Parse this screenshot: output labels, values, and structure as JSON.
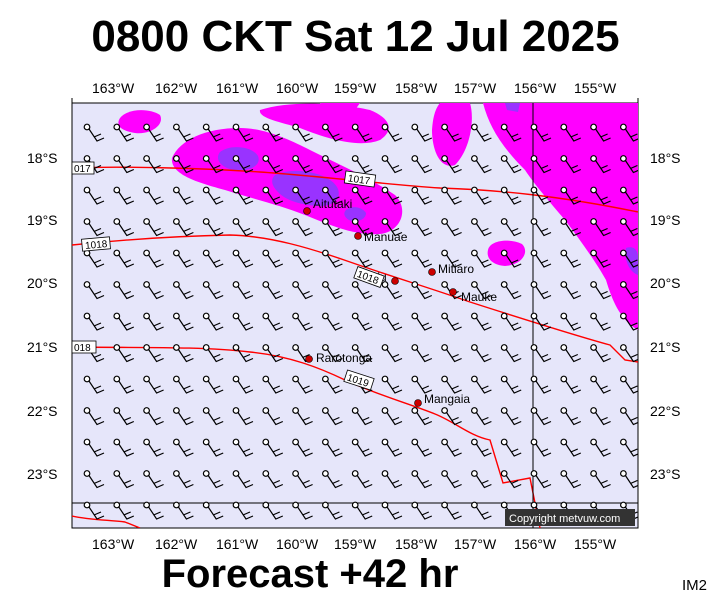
{
  "title": "0800 CKT Sat 12 Jul 2025",
  "footer": "Forecast +42 hr",
  "code": "IM2",
  "copyright": "Copyright metvuw.com",
  "lon_labels": [
    "163°W",
    "162°W",
    "161°W",
    "160°W",
    "159°W",
    "158°W",
    "157°W",
    "156°W",
    "155°W"
  ],
  "lat_labels": [
    "18°S",
    "19°S",
    "20°S",
    "21°S",
    "22°S",
    "23°S"
  ],
  "isobar_labels": [
    "017",
    "1017",
    "1018",
    "1018",
    "018",
    "1019"
  ],
  "places": [
    {
      "name": "Aitutaki"
    },
    {
      "name": "Manuae"
    },
    {
      "name": "Atiu"
    },
    {
      "name": "Mitiaro"
    },
    {
      "name": "Mauke"
    },
    {
      "name": "Rarotonga"
    },
    {
      "name": "Mangaia"
    }
  ],
  "colors": {
    "map_bg": "#e6e6fa",
    "precip_light": "#ff00ff",
    "precip_heavy": "#9933ff",
    "isobar": "#ff0000",
    "island_dot": "#cc0000"
  }
}
